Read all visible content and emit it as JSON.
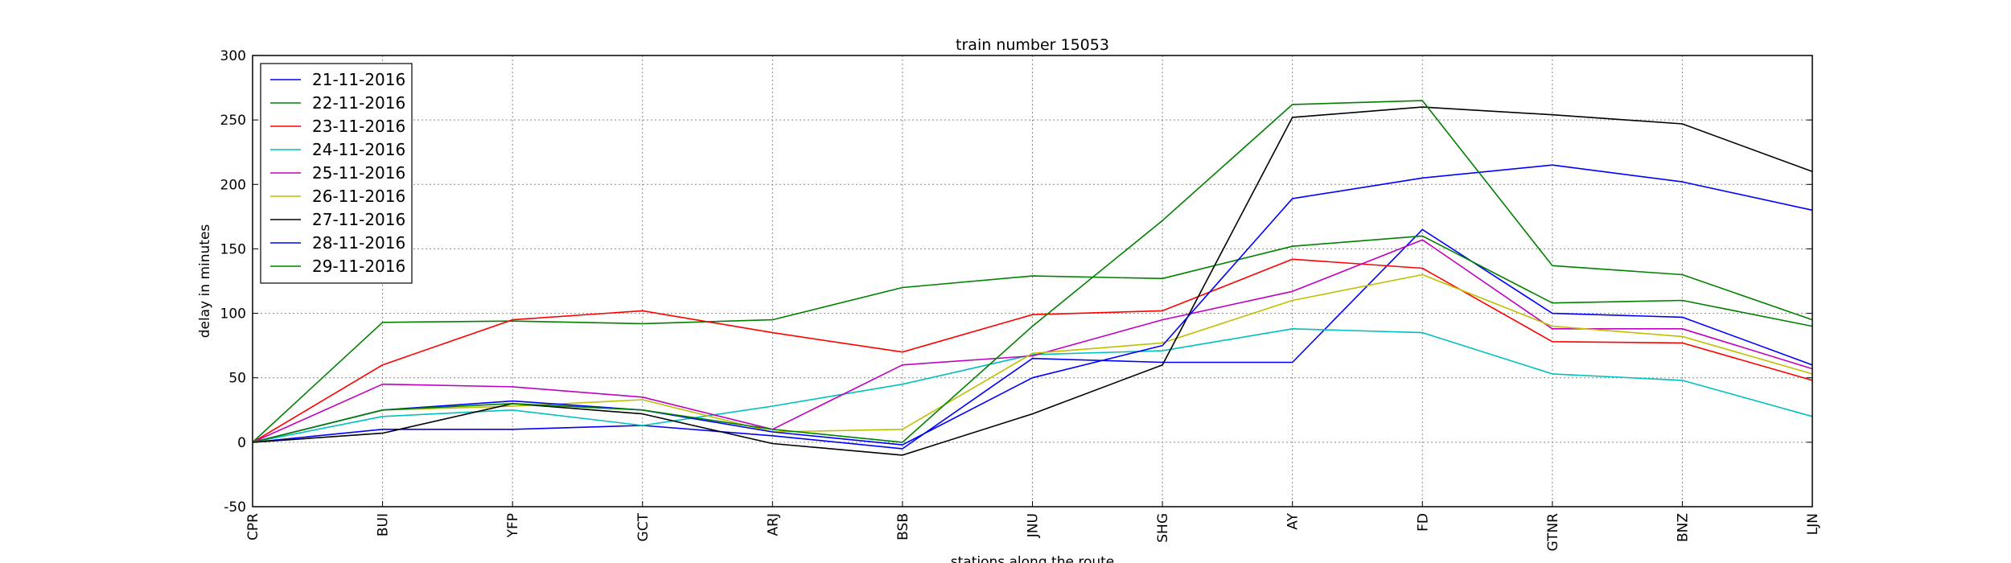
{
  "chart_data": {
    "type": "line",
    "title": "train number 15053",
    "xlabel": "stations along the route",
    "ylabel": "delay in minutes",
    "categories": [
      "CPR",
      "BUI",
      "YFP",
      "GCT",
      "ARJ",
      "BSB",
      "JNU",
      "SHG",
      "AY",
      "FD",
      "GTNR",
      "BNZ",
      "LJN"
    ],
    "ylim": [
      -50,
      300
    ],
    "yticks": [
      -50,
      0,
      50,
      100,
      150,
      200,
      250,
      300
    ],
    "grid": true,
    "legend_position": "top-left",
    "series": [
      {
        "name": "21-11-2016",
        "color": "#0000ff",
        "values": [
          0,
          10,
          10,
          13,
          5,
          -5,
          65,
          62,
          62,
          165,
          100,
          97,
          60
        ]
      },
      {
        "name": "22-11-2016",
        "color": "#008000",
        "values": [
          0,
          93,
          94,
          92,
          95,
          120,
          129,
          127,
          152,
          160,
          108,
          110,
          90
        ]
      },
      {
        "name": "23-11-2016",
        "color": "#ff0000",
        "values": [
          0,
          60,
          95,
          102,
          85,
          70,
          99,
          102,
          142,
          135,
          78,
          77,
          48
        ]
      },
      {
        "name": "24-11-2016",
        "color": "#00bfbf",
        "values": [
          0,
          20,
          25,
          13,
          28,
          45,
          68,
          71,
          88,
          85,
          53,
          48,
          20
        ]
      },
      {
        "name": "25-11-2016",
        "color": "#bf00bf",
        "values": [
          0,
          45,
          43,
          35,
          10,
          60,
          67,
          95,
          117,
          157,
          88,
          88,
          57
        ]
      },
      {
        "name": "26-11-2016",
        "color": "#bfbf00",
        "values": [
          0,
          25,
          28,
          33,
          8,
          10,
          69,
          77,
          110,
          130,
          90,
          82,
          53
        ]
      },
      {
        "name": "27-11-2016",
        "color": "#000000",
        "values": [
          0,
          7,
          30,
          22,
          -1,
          -10,
          22,
          60,
          252,
          260,
          254,
          247,
          210
        ]
      },
      {
        "name": "28-11-2016",
        "color": "#0000ff",
        "values": [
          0,
          25,
          32,
          25,
          8,
          -2,
          50,
          75,
          189,
          205,
          215,
          202,
          180
        ]
      },
      {
        "name": "29-11-2016",
        "color": "#008000",
        "values": [
          0,
          25,
          30,
          25,
          10,
          0,
          90,
          172,
          262,
          265,
          137,
          130,
          95
        ]
      }
    ]
  }
}
